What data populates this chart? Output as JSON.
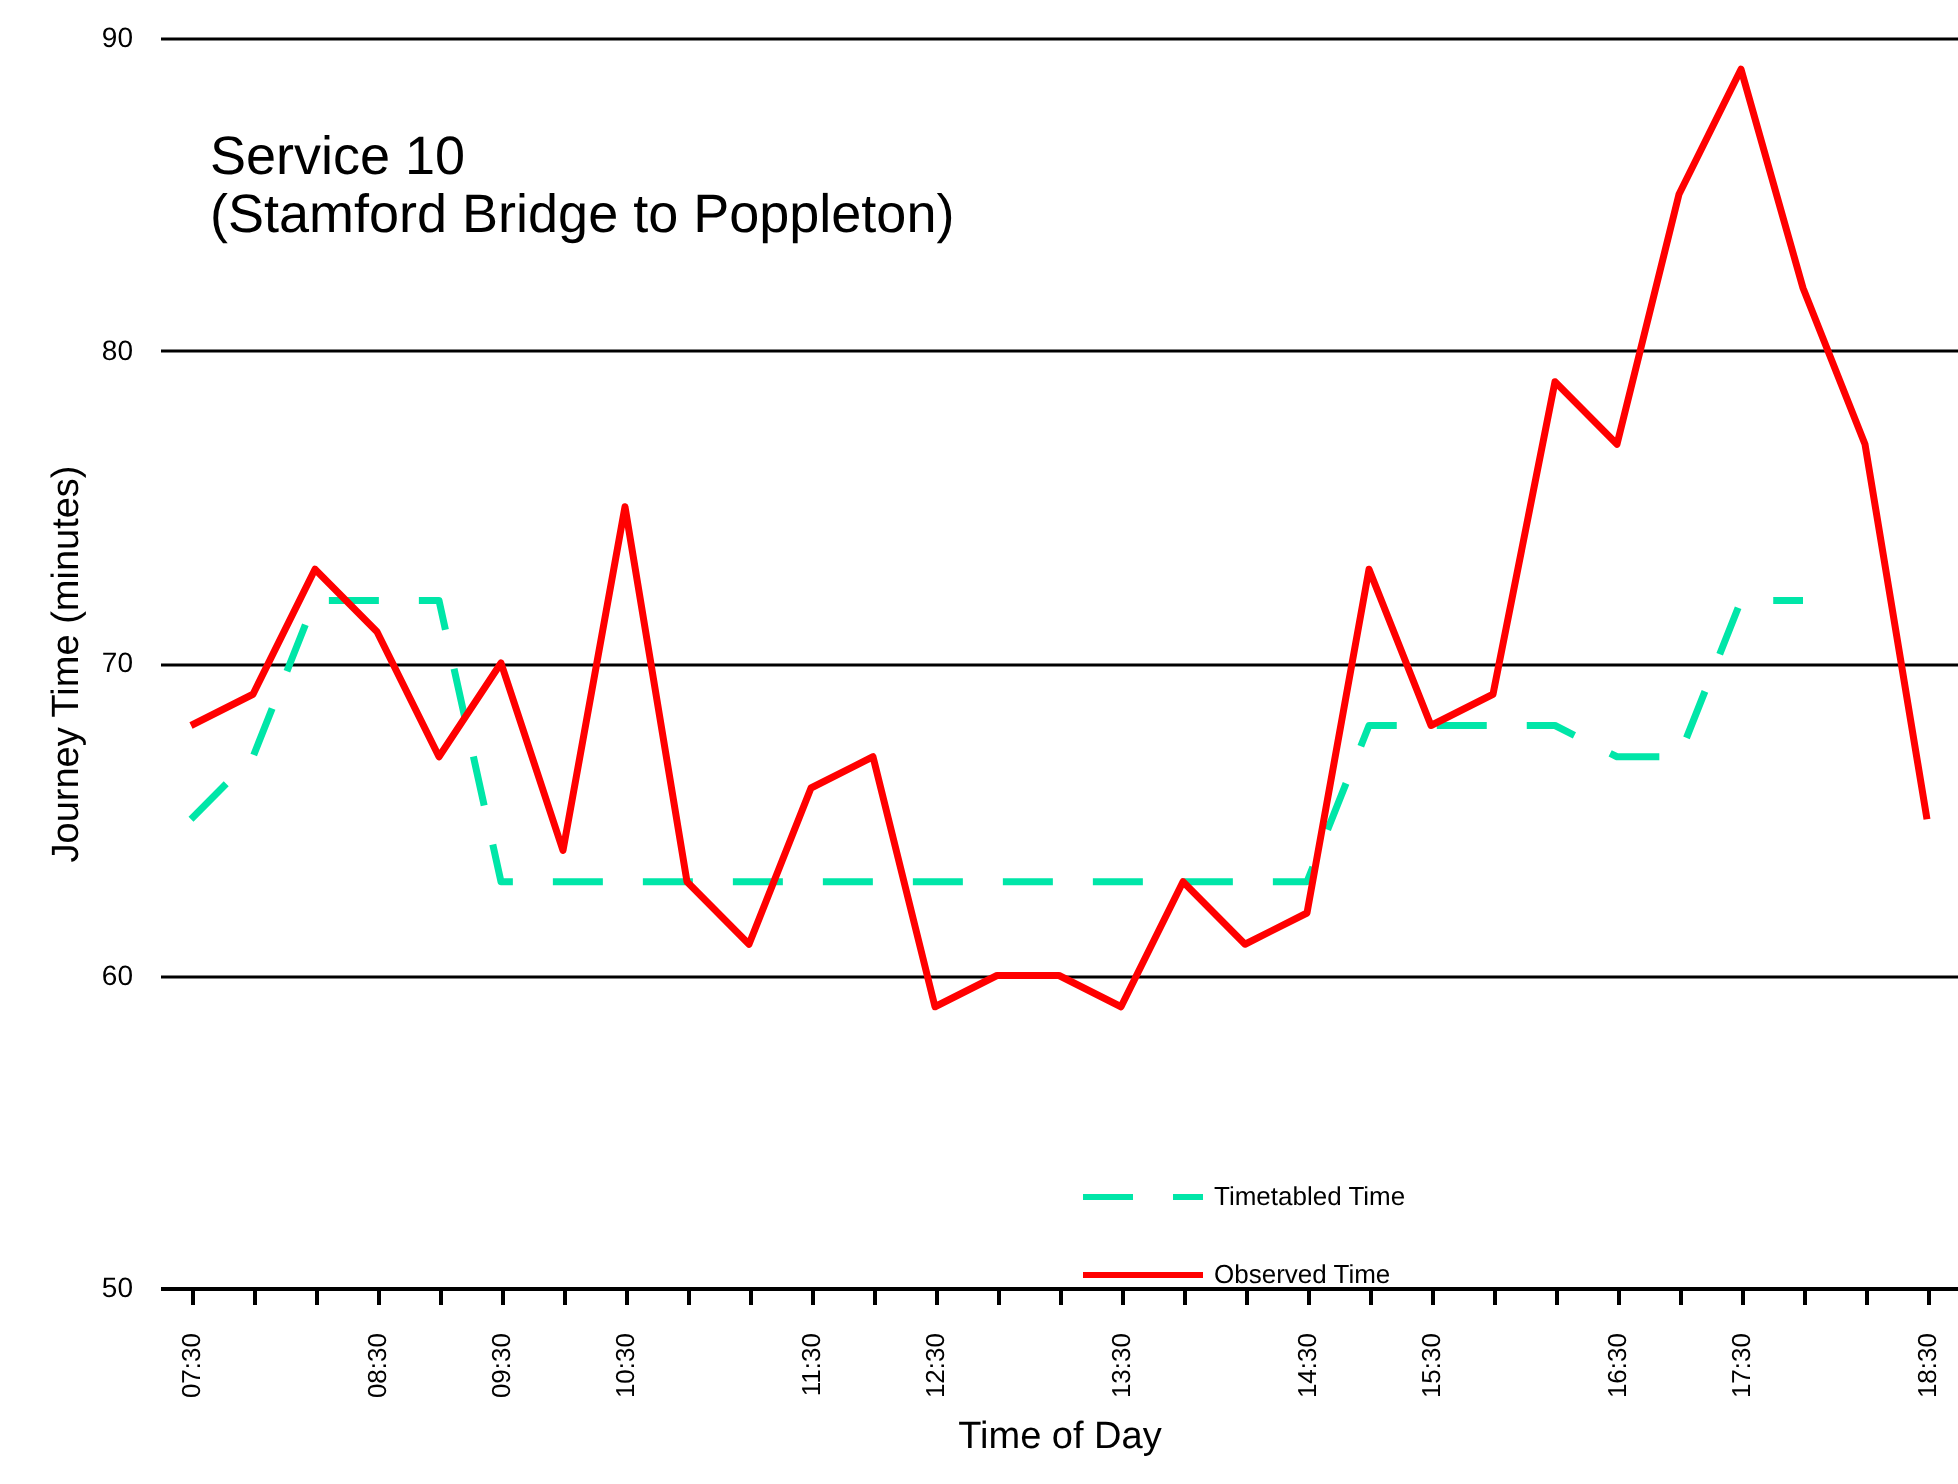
{
  "chart_data": {
    "type": "line",
    "title": "Service 10",
    "subtitle": "(Stamford Bridge to Poppleton)",
    "xlabel": "Time of Day",
    "ylabel": "Journey Time (minutes)",
    "categories": [
      "07:30",
      null,
      null,
      "08:30",
      null,
      "09:30",
      null,
      "10:30",
      null,
      null,
      "11:30",
      null,
      "12:30",
      null,
      null,
      "13:30",
      null,
      null,
      "14:30",
      null,
      "15:30",
      null,
      null,
      "16:30",
      null,
      "17:30",
      null,
      null,
      "18:30"
    ],
    "series": [
      {
        "name": "Timetabled Time",
        "color": "#00e6a8",
        "line_style": "dashed",
        "values": [
          65,
          67,
          72,
          72,
          72,
          63,
          63,
          63,
          63,
          63,
          63,
          63,
          63,
          63,
          63,
          63,
          63,
          63,
          63,
          68,
          68,
          68,
          68,
          67,
          67,
          72,
          72,
          null,
          null
        ]
      },
      {
        "name": "Observed Time",
        "color": "#ff0000",
        "line_style": "solid",
        "values": [
          68,
          69,
          73,
          71,
          67,
          70,
          64,
          75,
          63,
          61,
          66,
          67,
          59,
          60,
          60,
          59,
          63,
          61,
          62,
          73,
          68,
          69,
          79,
          77,
          85,
          89,
          82,
          77,
          65
        ]
      }
    ],
    "ylim": [
      50,
      90
    ],
    "yticks": [
      50,
      60,
      70,
      80,
      90
    ],
    "grid": "y",
    "legend": "bottom",
    "marker": "none"
  }
}
